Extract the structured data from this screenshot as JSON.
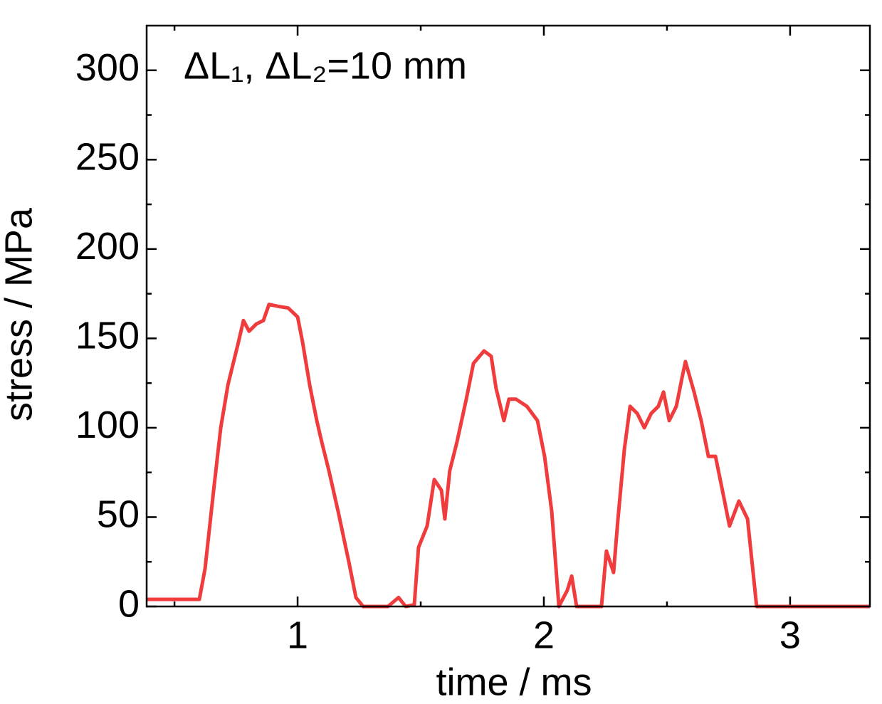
{
  "chart_data": {
    "type": "line",
    "annotation": "ΔL₁, ΔL₂=10 mm",
    "xlabel": "time / ms",
    "ylabel": "stress / MPa",
    "xlim": [
      0.387,
      3.324
    ],
    "xticks": [
      1,
      2,
      3
    ],
    "xminorticks": [
      0.5,
      1.5,
      2.5
    ],
    "ylim": [
      0,
      325
    ],
    "yticks": [
      0,
      50,
      100,
      150,
      200,
      250,
      300
    ],
    "yminorticks": [
      25,
      75,
      125,
      175,
      225,
      275
    ],
    "series": [
      {
        "name": "stress",
        "color": "#f03c3c",
        "x": [
          0.387,
          0.601,
          0.624,
          0.659,
          0.688,
          0.717,
          0.76,
          0.78,
          0.803,
          0.832,
          0.861,
          0.884,
          0.919,
          0.962,
          1.0,
          1.02,
          1.049,
          1.078,
          1.098,
          1.127,
          1.165,
          1.208,
          1.237,
          1.266,
          1.367,
          1.41,
          1.439,
          1.474,
          1.491,
          1.526,
          1.555,
          1.584,
          1.598,
          1.618,
          1.647,
          1.685,
          1.714,
          1.757,
          1.786,
          1.806,
          1.838,
          1.858,
          1.887,
          1.931,
          1.974,
          2.003,
          2.032,
          2.061,
          2.095,
          2.113,
          2.133,
          2.234,
          2.254,
          2.283,
          2.301,
          2.327,
          2.35,
          2.379,
          2.408,
          2.436,
          2.465,
          2.486,
          2.509,
          2.538,
          2.561,
          2.575,
          2.61,
          2.639,
          2.668,
          2.697,
          2.725,
          2.754,
          2.792,
          2.827,
          2.864,
          3.324
        ],
        "values": [
          4,
          4,
          21,
          65,
          100,
          124,
          148,
          160,
          154,
          158,
          160,
          169,
          168,
          167,
          162,
          148,
          124,
          104,
          92,
          76,
          53,
          25,
          5,
          0,
          0,
          5,
          0,
          1,
          33,
          45,
          71,
          65,
          49,
          76,
          92,
          116,
          136,
          143,
          140,
          122,
          104,
          116,
          116,
          112,
          104,
          84,
          53,
          0,
          9,
          17,
          0,
          0,
          31,
          19,
          49,
          88,
          112,
          108,
          100,
          108,
          112,
          120,
          104,
          112,
          128,
          137,
          120,
          104,
          84,
          84,
          65,
          45,
          59,
          49,
          0,
          0
        ]
      }
    ]
  }
}
